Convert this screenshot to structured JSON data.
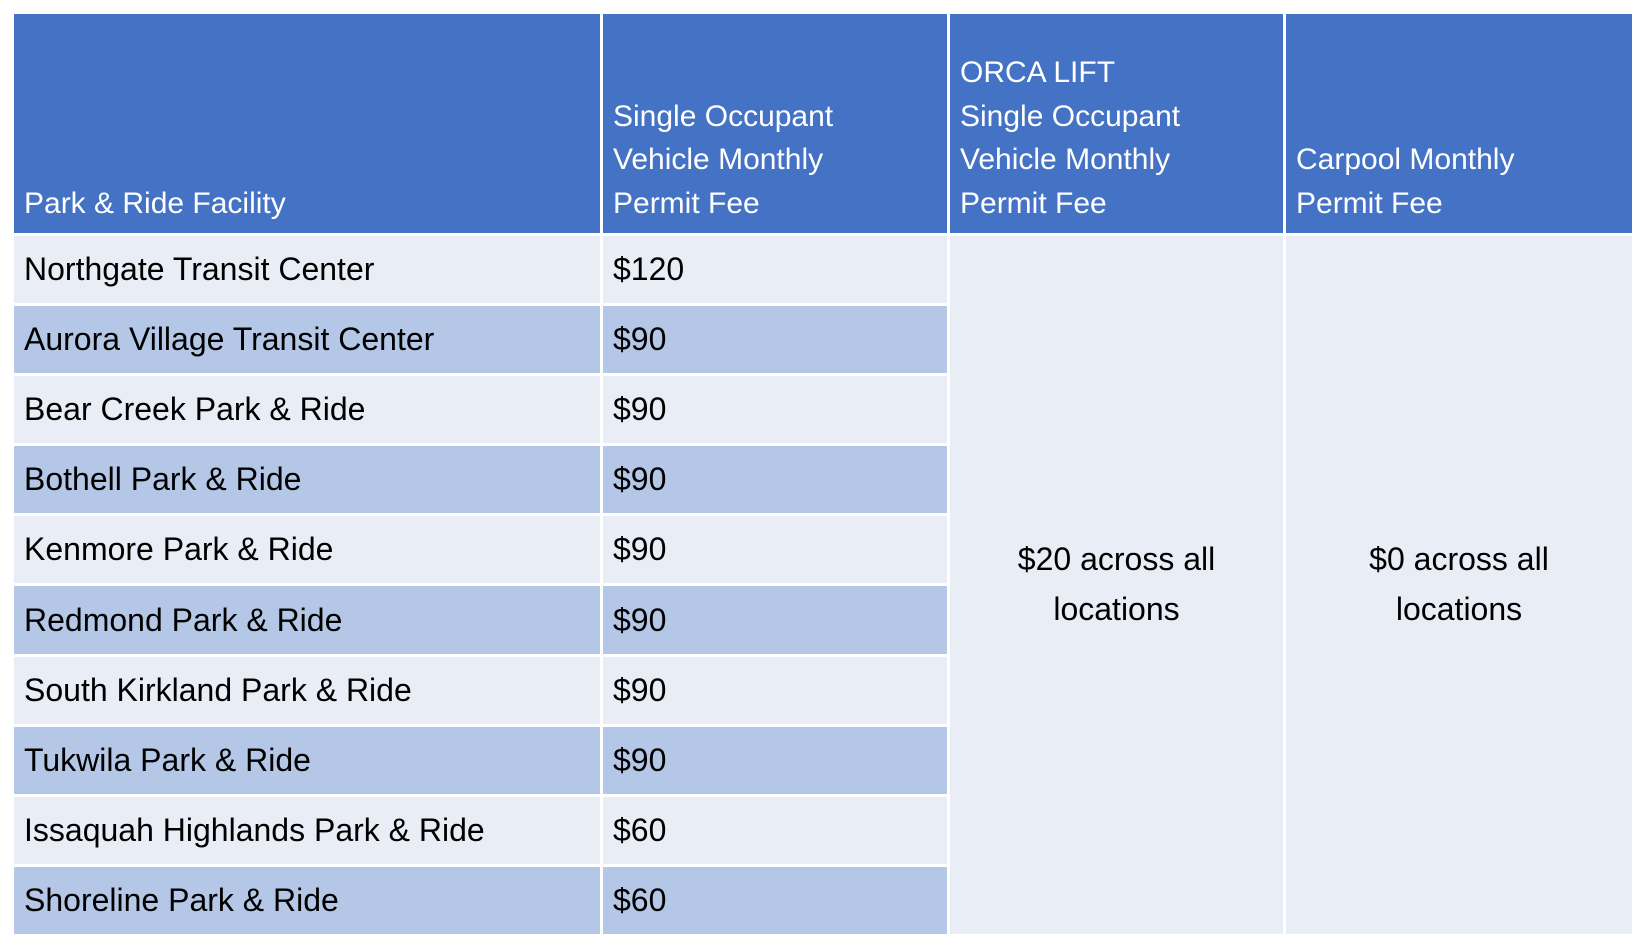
{
  "colors": {
    "header-bg": "#4472C4",
    "header-text": "#FFFFFF",
    "band-light": "#E9EDF6",
    "band-dark": "#B4C7E7",
    "grid-line": "#FFFFFF",
    "body-text": "#000000"
  },
  "table": {
    "headers": {
      "facility": "Park & Ride Facility",
      "sov": "Single Occupant\nVehicle Monthly\nPermit Fee",
      "orca_lift": "ORCA LIFT\nSingle Occupant\nVehicle Monthly\nPermit Fee",
      "carpool": "Carpool Monthly\nPermit Fee"
    },
    "rows": [
      {
        "facility": "Northgate Transit Center",
        "sov_fee": "$120"
      },
      {
        "facility": "Aurora Village Transit Center",
        "sov_fee": "$90"
      },
      {
        "facility": "Bear Creek Park & Ride",
        "sov_fee": "$90"
      },
      {
        "facility": "Bothell Park & Ride",
        "sov_fee": "$90"
      },
      {
        "facility": "Kenmore Park & Ride",
        "sov_fee": "$90"
      },
      {
        "facility": "Redmond Park & Ride",
        "sov_fee": "$90"
      },
      {
        "facility": "South Kirkland Park & Ride",
        "sov_fee": "$90"
      },
      {
        "facility": "Tukwila Park & Ride",
        "sov_fee": "$90"
      },
      {
        "facility": "Issaquah Highlands Park & Ride",
        "sov_fee": "$60"
      },
      {
        "facility": "Shoreline Park & Ride",
        "sov_fee": "$60"
      }
    ],
    "orca_lift_all": "$20 across all locations",
    "carpool_all": "$0 across all locations"
  }
}
